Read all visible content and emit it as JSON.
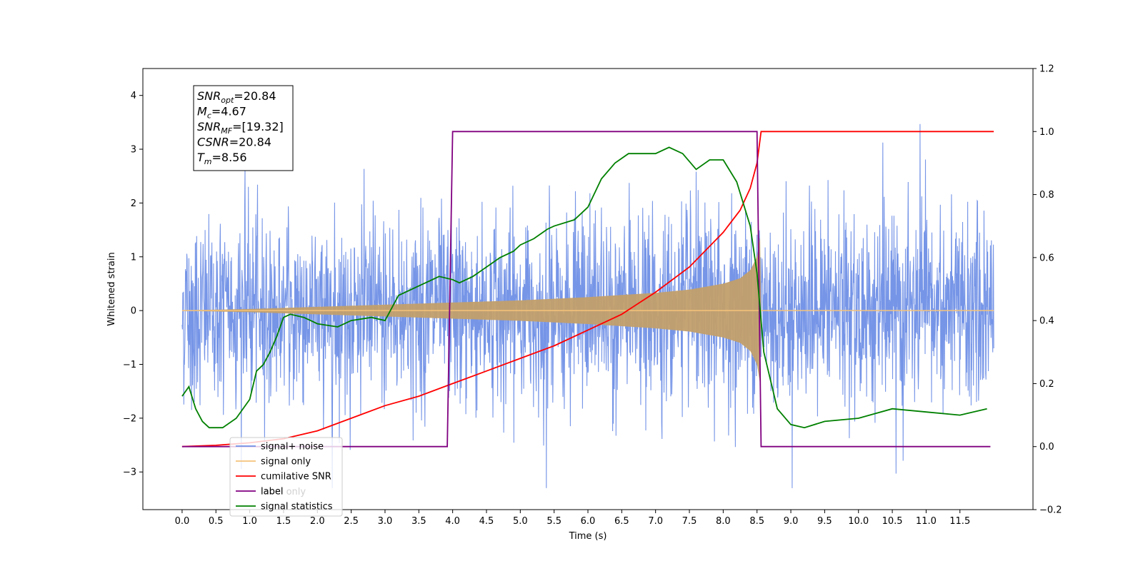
{
  "chart_data": {
    "type": "line",
    "xlabel": "Time (s)",
    "ylabel_left": "Whitened strain",
    "ylabel_right": "",
    "xlim": [
      -0.58,
      12.58
    ],
    "ylim_left": [
      -3.7,
      4.5
    ],
    "ylim_right": [
      -0.2,
      1.2
    ],
    "x_ticks": [
      0.0,
      0.5,
      1.0,
      1.5,
      2.0,
      2.5,
      3.0,
      3.5,
      4.0,
      4.5,
      5.0,
      5.5,
      6.0,
      6.5,
      7.0,
      7.5,
      8.0,
      8.5,
      9.0,
      9.5,
      10.0,
      10.5,
      11.0,
      11.5
    ],
    "x_tick_labels": [
      "0.0",
      "0.5",
      "1.0",
      "1.5",
      "2.0",
      "2.5",
      "3.0",
      "3.5",
      "4.0",
      "4.5",
      "5.0",
      "5.5",
      "6.0",
      "6.5",
      "7.0",
      "7.5",
      "8.0",
      "8.5",
      "9.0",
      "9.5",
      "10.0",
      "10.5",
      "11.0",
      "11.5"
    ],
    "y_left_ticks": [
      -3,
      -2,
      -1,
      0,
      1,
      2,
      3,
      4
    ],
    "y_left_tick_labels": [
      "−3",
      "−2",
      "−1",
      "0",
      "1",
      "2",
      "3",
      "4"
    ],
    "y_right_ticks": [
      -0.2,
      0.0,
      0.2,
      0.4,
      0.6,
      0.8,
      1.0,
      1.2
    ],
    "y_right_tick_labels": [
      "−0.2",
      "0.0",
      "0.2",
      "0.4",
      "0.6",
      "0.8",
      "1.0",
      "1.2"
    ],
    "grid": false,
    "legend_position": "lower-left",
    "legend": [
      {
        "name": "signal+ noise",
        "color": "#6f8fe6"
      },
      {
        "name": "signal only",
        "color": "#f5c37a"
      },
      {
        "name": "cumilative SNR",
        "color": "#ff0000"
      },
      {
        "name": "label",
        "color": "#800080"
      },
      {
        "name": "signal statistics",
        "color": "#008000"
      }
    ],
    "legend_overlap_text": "label only",
    "annotation": {
      "lines": [
        {
          "prefix": "SNR",
          "subscript": "opt",
          "text": "=20.84"
        },
        {
          "prefix": "M",
          "subscript": "c",
          "text": "=4.67"
        },
        {
          "prefix": "SNR",
          "subscript": "MF",
          "text": "=[19.32]"
        },
        {
          "prefix": "CSNR",
          "subscript": "",
          "text": "=20.84"
        },
        {
          "prefix": "T",
          "subscript": "m",
          "text": "=8.56"
        }
      ]
    },
    "series": [
      {
        "name": "signal+ noise",
        "axis": "left",
        "description": "noise envelope (peaks)",
        "x_range": [
          0.0,
          12.0
        ],
        "noise_max_amplitude": 4.1,
        "typical_range": [
          -2.0,
          2.2
        ]
      },
      {
        "name": "signal only",
        "axis": "left",
        "x": [
          0.0,
          1.0,
          2.0,
          3.0,
          4.0,
          5.0,
          6.0,
          6.5,
          7.0,
          7.5,
          8.0,
          8.25,
          8.4,
          8.5,
          8.55,
          8.56
        ],
        "envelope": [
          0.005,
          0.03,
          0.07,
          0.11,
          0.15,
          0.19,
          0.25,
          0.29,
          0.33,
          0.39,
          0.5,
          0.6,
          0.75,
          1.0,
          1.4,
          0.0
        ]
      },
      {
        "name": "cumilative SNR",
        "axis": "right",
        "x": [
          0.0,
          0.5,
          1.0,
          1.5,
          2.0,
          2.5,
          3.0,
          3.5,
          4.0,
          4.5,
          5.0,
          5.5,
          6.0,
          6.5,
          7.0,
          7.5,
          8.0,
          8.25,
          8.4,
          8.5,
          8.56,
          12.0
        ],
        "y": [
          0.0,
          0.004,
          0.012,
          0.025,
          0.05,
          0.09,
          0.13,
          0.16,
          0.2,
          0.24,
          0.28,
          0.32,
          0.37,
          0.42,
          0.49,
          0.57,
          0.68,
          0.75,
          0.82,
          0.9,
          1.0,
          1.0
        ]
      },
      {
        "name": "label",
        "axis": "right",
        "x": [
          0.0,
          3.92,
          4.0,
          8.5,
          8.56,
          11.95
        ],
        "y": [
          0.0,
          0.0,
          1.0,
          1.0,
          0.0,
          0.0
        ]
      },
      {
        "name": "signal statistics",
        "axis": "right",
        "x": [
          0.0,
          0.1,
          0.2,
          0.3,
          0.4,
          0.6,
          0.8,
          1.0,
          1.1,
          1.2,
          1.3,
          1.4,
          1.5,
          1.6,
          1.8,
          1.9,
          2.0,
          2.3,
          2.5,
          2.8,
          3.0,
          3.2,
          3.3,
          3.5,
          3.7,
          3.8,
          4.0,
          4.1,
          4.3,
          4.5,
          4.7,
          4.9,
          5.0,
          5.2,
          5.4,
          5.5,
          5.8,
          6.0,
          6.2,
          6.4,
          6.6,
          7.0,
          7.2,
          7.4,
          7.6,
          7.8,
          8.0,
          8.2,
          8.4,
          8.5,
          8.6,
          8.8,
          9.0,
          9.2,
          9.5,
          10.0,
          10.5,
          11.0,
          11.5,
          11.9
        ],
        "y": [
          0.16,
          0.19,
          0.12,
          0.08,
          0.06,
          0.06,
          0.09,
          0.15,
          0.24,
          0.26,
          0.3,
          0.35,
          0.41,
          0.42,
          0.41,
          0.4,
          0.39,
          0.38,
          0.4,
          0.41,
          0.4,
          0.48,
          0.49,
          0.51,
          0.53,
          0.54,
          0.53,
          0.52,
          0.54,
          0.57,
          0.6,
          0.62,
          0.64,
          0.66,
          0.69,
          0.7,
          0.72,
          0.76,
          0.85,
          0.9,
          0.93,
          0.93,
          0.95,
          0.93,
          0.88,
          0.91,
          0.91,
          0.84,
          0.7,
          0.55,
          0.3,
          0.12,
          0.07,
          0.06,
          0.08,
          0.09,
          0.12,
          0.11,
          0.1,
          0.12
        ]
      }
    ]
  }
}
